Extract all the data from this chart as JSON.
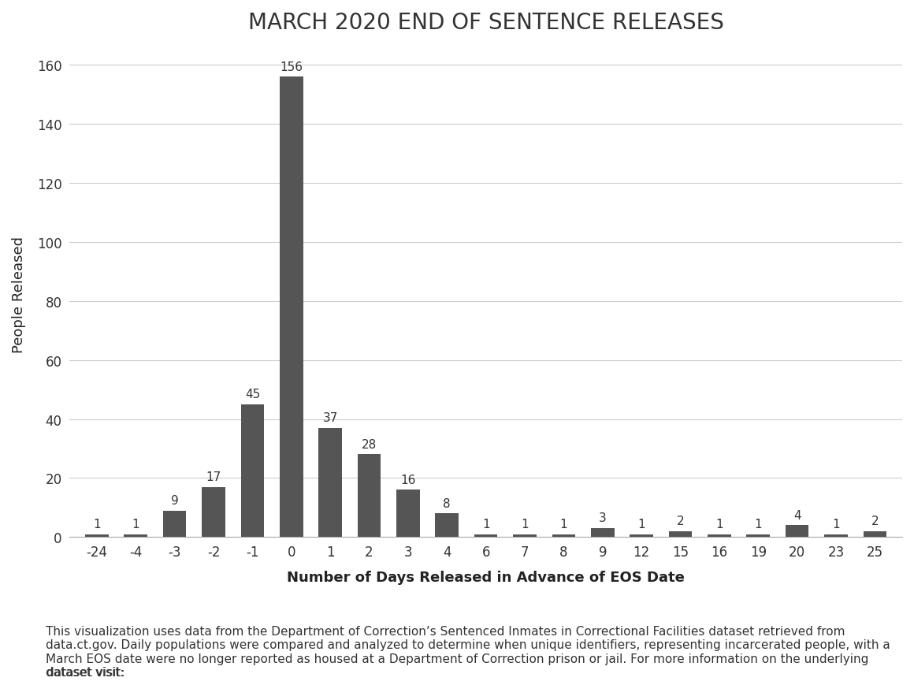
{
  "title": "MARCH 2020 END OF SENTENCE RELEASES",
  "xlabel": "Number of Days Released in Advance of EOS Date",
  "ylabel": "People Released",
  "background_color": "#ffffff",
  "bar_color": "#555555",
  "categories": [
    -24,
    -4,
    -3,
    -2,
    -1,
    0,
    1,
    2,
    3,
    4,
    6,
    7,
    8,
    9,
    12,
    15,
    16,
    19,
    20,
    23,
    25
  ],
  "values": [
    1,
    1,
    9,
    17,
    45,
    156,
    37,
    28,
    16,
    8,
    1,
    1,
    1,
    3,
    1,
    2,
    1,
    1,
    4,
    1,
    2
  ],
  "ylim": [
    0,
    165
  ],
  "yticks": [
    0,
    20,
    40,
    60,
    80,
    100,
    120,
    140,
    160
  ],
  "title_fontsize": 20,
  "axis_label_fontsize": 13,
  "tick_fontsize": 12,
  "bar_label_fontsize": 11,
  "footnote_text": "This visualization uses data from the Department of Correction’s Sentenced Inmates in Correctional Facilities dataset retrieved from\ndata.ct.gov. Daily populations were compared and analyzed to determine when unique identifiers, representing incarcerated people, with a\nMarch EOS date were no longer reported as housed at a Department of Correction prison or jail. For more information on the underlying\ndataset visit: ",
  "footnote_url": "https://data.ct.gov/Public-Safety/Sentenced-Inmates-in-Correctional-Facilities/um73-fxm4",
  "footnote_fontsize": 11,
  "grid_color": "#cccccc"
}
